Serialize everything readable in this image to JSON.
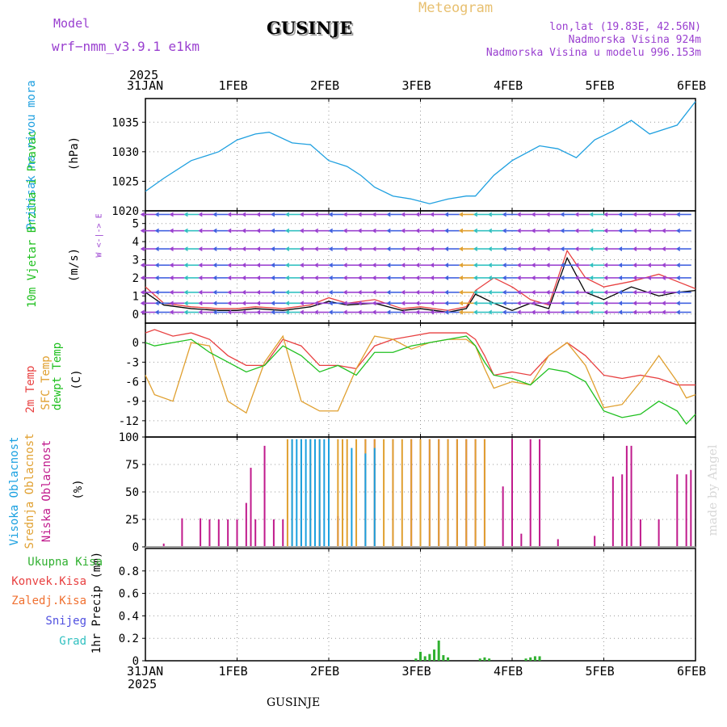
{
  "header": {
    "model_label": "Model",
    "model_name": "wrf−nmm_v3.9.1 e1km",
    "location": "GUSINJE",
    "meteogram_title": "Meteogram",
    "lonlat": "lon,lat (19.83E, 42.56N)",
    "elevation": "Nadmorska Visina 924m",
    "model_elevation": "Nadmorska Visina u modelu 996.153m",
    "footer_location": "GUSINJE",
    "watermark": "made by Angel"
  },
  "colors": {
    "pressure": "#1fa0e0",
    "temp2m": "#e84040",
    "sfc": "#e0a030",
    "dewpt": "#20c020",
    "cloud_high": "#1aa0e0",
    "cloud_mid": "#e0a030",
    "cloud_low": "#c01a8c",
    "precip_total": "#30b030",
    "purple": "#9a40d0"
  },
  "time_axis": {
    "year": "2025",
    "labels": [
      "31JAN",
      "1FEB",
      "2FEB",
      "3FEB",
      "4FEB",
      "5FEB",
      "6FEB"
    ]
  },
  "chart_data": [
    {
      "type": "line",
      "panel": "pressure",
      "ylabel": "Pritisak na nivou mora",
      "unit": "(hPa)",
      "ylim": [
        1020,
        1039
      ],
      "yticks": [
        1020,
        1025,
        1030,
        1035
      ],
      "x": [
        0,
        0.2,
        0.5,
        0.8,
        1.0,
        1.2,
        1.35,
        1.6,
        1.8,
        2.0,
        2.2,
        2.35,
        2.5,
        2.7,
        2.9,
        3.1,
        3.3,
        3.5,
        3.6,
        3.8,
        4.0,
        4.3,
        4.5,
        4.7,
        4.9,
        5.1,
        5.3,
        5.5,
        5.8,
        6.0
      ],
      "series": [
        {
          "values": [
            1023.3,
            1025.5,
            1028.5,
            1030,
            1032,
            1033,
            1033.3,
            1031.5,
            1031.2,
            1028.5,
            1027.5,
            1026,
            1024,
            1022.5,
            1022,
            1021.2,
            1022,
            1022.5,
            1022.5,
            1026,
            1028.5,
            1031,
            1030.5,
            1029,
            1032,
            1033.5,
            1035.3,
            1033,
            1034.5,
            1038.5
          ]
        }
      ]
    },
    {
      "type": "line",
      "panel": "wind",
      "ylabel": "10m Vjetar Brzina i Pravac",
      "unit": "(m/s)",
      "compass": "W <-|-> E",
      "ylim": [
        -0.5,
        5.7
      ],
      "yticks": [
        0,
        1,
        2,
        3,
        4,
        5
      ],
      "x": [
        0,
        0.2,
        0.5,
        0.8,
        1.0,
        1.2,
        1.5,
        1.8,
        2.0,
        2.2,
        2.5,
        2.8,
        3.0,
        3.3,
        3.5,
        3.6,
        3.8,
        4.0,
        4.2,
        4.4,
        4.6,
        4.8,
        5.0,
        5.3,
        5.6,
        5.8,
        6.0
      ],
      "series": [
        {
          "values": [
            1.5,
            0.6,
            0.4,
            0.3,
            0.3,
            0.4,
            0.3,
            0.5,
            0.9,
            0.6,
            0.8,
            0.3,
            0.4,
            0.2,
            0.4,
            1.3,
            2.0,
            1.5,
            0.8,
            0.5,
            3.5,
            2.0,
            1.5,
            1.8,
            2.2,
            1.8,
            1.4
          ]
        },
        {
          "values": [
            1.2,
            0.5,
            0.3,
            0.2,
            0.2,
            0.3,
            0.2,
            0.4,
            0.7,
            0.5,
            0.6,
            0.2,
            0.3,
            0.1,
            0.3,
            1.1,
            0.6,
            0.2,
            0.6,
            0.3,
            3.1,
            1.2,
            0.8,
            1.5,
            1.0,
            1.2,
            1.3
          ]
        }
      ]
    },
    {
      "type": "line",
      "panel": "temperature",
      "ylabels": [
        "2m Temp",
        "SFC Temp",
        "dewpt Temp"
      ],
      "unit": "(C)",
      "ylim": [
        -14.5,
        3
      ],
      "yticks": [
        0,
        -3,
        -6,
        -9,
        -12
      ],
      "x": [
        0,
        0.1,
        0.3,
        0.5,
        0.7,
        0.9,
        1.1,
        1.3,
        1.5,
        1.7,
        1.9,
        2.1,
        2.3,
        2.5,
        2.7,
        2.9,
        3.1,
        3.3,
        3.5,
        3.6,
        3.7,
        3.8,
        4.0,
        4.2,
        4.4,
        4.6,
        4.8,
        5.0,
        5.2,
        5.4,
        5.6,
        5.8,
        5.9,
        6.0
      ],
      "series": [
        {
          "name": "2m Temp",
          "values": [
            1.5,
            2,
            1,
            1.5,
            0.5,
            -2,
            -3.5,
            -3.5,
            0.5,
            -0.5,
            -3.5,
            -3.5,
            -4,
            -0.5,
            0.5,
            1,
            1.5,
            1.5,
            1.5,
            0.5,
            -2,
            -5,
            -4.5,
            -5,
            -2,
            0,
            -2,
            -5,
            -5.5,
            -5,
            -5.5,
            -6.5,
            -6.5,
            -6.5
          ]
        },
        {
          "name": "SFC Temp",
          "values": [
            -5,
            -8,
            -9,
            0,
            -0.5,
            -9,
            -10.8,
            -3,
            1,
            -9,
            -10.5,
            -10.5,
            -4,
            1,
            0.5,
            -1,
            0,
            0.5,
            0.5,
            -0.5,
            -4,
            -7,
            -6,
            -6.5,
            -2,
            0,
            -3.5,
            -10,
            -9.5,
            -6,
            -2,
            -6,
            -8.5,
            -8
          ]
        },
        {
          "name": "dewpt Temp",
          "values": [
            0,
            -0.5,
            0,
            0.5,
            -1.5,
            -3,
            -4.5,
            -3.5,
            -0.5,
            -2,
            -4.5,
            -3.5,
            -5,
            -1.5,
            -1.5,
            -0.5,
            0,
            0.5,
            1,
            -0.5,
            -3,
            -5,
            -5.5,
            -6.5,
            -4,
            -4.5,
            -6,
            -10.5,
            -11.5,
            -11,
            -9,
            -10.5,
            -12.5,
            -11
          ]
        }
      ]
    },
    {
      "type": "bar",
      "panel": "cloud",
      "ylabels": [
        "Visoka Oblacnost",
        "Srednja Oblacnost",
        "Niska Oblacnost"
      ],
      "unit": "(%)",
      "ylim": [
        0,
        100
      ],
      "yticks": [
        0,
        25,
        50,
        75,
        100
      ],
      "series": [
        {
          "name": "Niska Oblacnost",
          "color_key": "cloud_low",
          "x": [
            0.2,
            0.4,
            0.6,
            0.7,
            0.8,
            0.9,
            1.0,
            1.1,
            1.15,
            1.2,
            1.3,
            1.4,
            1.5,
            1.7,
            1.9,
            2.1,
            2.4,
            2.5,
            2.7,
            2.9,
            3.0,
            3.1,
            3.2,
            3.3,
            3.4,
            3.5,
            3.6,
            3.7,
            3.9,
            4.0,
            4.1,
            4.2,
            4.3,
            4.5,
            4.9,
            5.1,
            5.2,
            5.25,
            5.3,
            5.4,
            5.6,
            5.8,
            5.9,
            5.95
          ],
          "values": [
            3,
            26,
            26,
            25,
            25,
            25,
            25,
            40,
            72,
            25,
            92,
            25,
            25,
            25,
            25,
            28,
            98,
            98,
            98,
            98,
            98,
            98,
            98,
            98,
            98,
            98,
            98,
            98,
            55,
            98,
            12,
            98,
            98,
            7,
            10,
            64,
            66,
            92,
            92,
            25,
            25,
            66,
            66,
            70
          ]
        },
        {
          "name": "Srednja Oblacnost",
          "color_key": "cloud_mid",
          "x": [
            1.55,
            1.6,
            1.7,
            1.8,
            1.9,
            2.1,
            2.15,
            2.2,
            2.3,
            2.4,
            2.5,
            2.6,
            2.7,
            2.8,
            2.9,
            3.0,
            3.1,
            3.2,
            3.3,
            3.4,
            3.5,
            3.6,
            3.7
          ],
          "values": [
            98,
            98,
            98,
            98,
            98,
            98,
            98,
            98,
            98,
            98,
            98,
            98,
            98,
            98,
            98,
            98,
            98,
            98,
            98,
            98,
            98,
            98,
            98
          ]
        },
        {
          "name": "Visoka Oblacnost",
          "color_key": "cloud_high",
          "x": [
            1.6,
            1.65,
            1.7,
            1.75,
            1.8,
            1.85,
            1.9,
            1.95,
            2.0,
            2.25,
            2.4,
            2.5
          ],
          "values": [
            98,
            98,
            98,
            98,
            98,
            98,
            98,
            98,
            98,
            90,
            85,
            90
          ]
        }
      ]
    },
    {
      "type": "bar",
      "panel": "precip",
      "ylabel": "1hr Precip (mm)",
      "legend": [
        "Ukupna Kisa",
        "Konvek.Kisa",
        "Zaledj.Kisa",
        "Snijeg",
        "Grad"
      ],
      "ylim": [
        0,
        1
      ],
      "yticks": [
        0,
        0.2,
        0.4,
        0.6,
        0.8
      ],
      "series": [
        {
          "name": "Ukupna Kisa",
          "color_key": "precip_total",
          "x": [
            2.95,
            3.0,
            3.05,
            3.1,
            3.15,
            3.2,
            3.25,
            3.3,
            3.65,
            3.7,
            3.75,
            4.15,
            4.2,
            4.25,
            4.3
          ],
          "values": [
            0.02,
            0.08,
            0.04,
            0.06,
            0.1,
            0.18,
            0.05,
            0.03,
            0.02,
            0.03,
            0.02,
            0.02,
            0.03,
            0.04,
            0.04
          ]
        }
      ]
    }
  ]
}
